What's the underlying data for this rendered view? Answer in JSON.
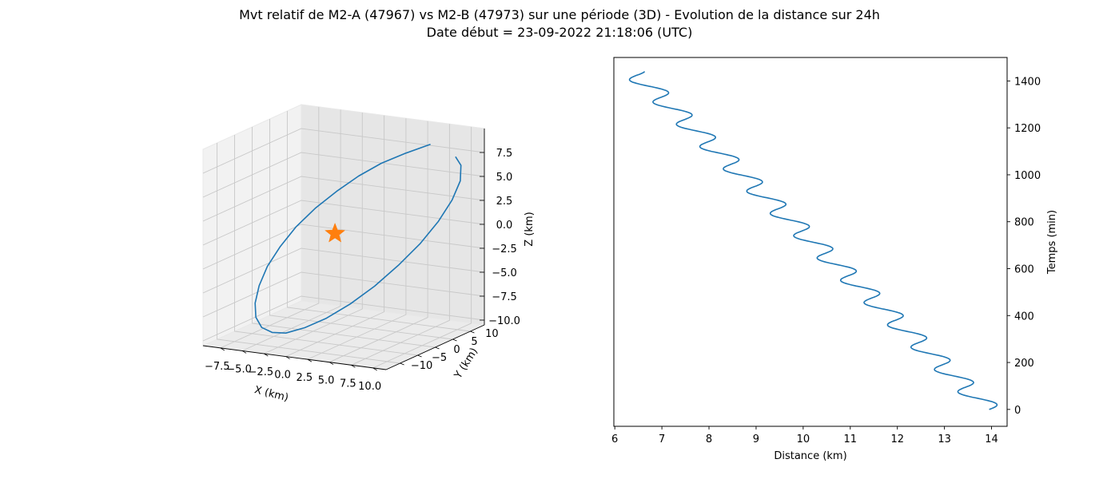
{
  "title": {
    "line1": "Mvt relatif de M2-A (47967) vs M2-B (47973) sur une période (3D) - Evolution de la distance sur 24h",
    "line2": "Date début = 23-09-2022 21:18:06 (UTC)"
  },
  "colors": {
    "series": "#1f77b4",
    "marker": "#ff7f0e",
    "pane_left": "#f2f2f2",
    "pane_right": "#e6e6e6",
    "pane_floor": "#ebebeb"
  },
  "chart_data": [
    {
      "type": "line-3d",
      "xlabel": "X (km)",
      "ylabel": "Y (km)",
      "zlabel": "Z (km)",
      "x_ticks": [
        "−7.5",
        "−5.0",
        "−2.5",
        "0.0",
        "2.5",
        "5.0",
        "7.5",
        "10.0"
      ],
      "y_ticks": [
        "−10",
        "−5",
        "0",
        "5",
        "10"
      ],
      "z_ticks": [
        "−10.0",
        "−7.5",
        "−5.0",
        "−2.5",
        "0.0",
        "2.5",
        "5.0",
        "7.5"
      ],
      "xlim": [
        -9.5,
        11.5
      ],
      "ylim": [
        -14,
        14
      ],
      "zlim": [
        -10.5,
        10
      ],
      "grid": true,
      "marker": {
        "shape": "star",
        "x": 0,
        "y": 0,
        "z": 0
      },
      "series": [
        {
          "points": [
            [
              7.9,
              7.6,
              9.0
            ],
            [
              6.5,
              4.0,
              8.5
            ],
            [
              5.0,
              0.8,
              7.8
            ],
            [
              3.6,
              -2.2,
              6.8
            ],
            [
              2.2,
              -5.0,
              5.5
            ],
            [
              0.8,
              -7.6,
              4.0
            ],
            [
              -0.5,
              -9.8,
              2.3
            ],
            [
              -1.6,
              -11.6,
              0.4
            ],
            [
              -2.6,
              -12.8,
              -1.6
            ],
            [
              -3.3,
              -13.4,
              -3.6
            ],
            [
              -3.8,
              -13.3,
              -5.5
            ],
            [
              -4.0,
              -12.6,
              -7.1
            ],
            [
              -3.9,
              -11.2,
              -8.4
            ],
            [
              -3.5,
              -9.2,
              -9.2
            ],
            [
              -2.9,
              -6.8,
              -9.6
            ],
            [
              -1.9,
              -3.9,
              -9.4
            ],
            [
              -0.7,
              -0.7,
              -8.8
            ],
            [
              0.7,
              2.6,
              -7.7
            ],
            [
              2.2,
              5.8,
              -6.2
            ],
            [
              3.8,
              8.6,
              -4.3
            ],
            [
              5.4,
              10.9,
              -2.2
            ],
            [
              6.8,
              12.6,
              0.0
            ],
            [
              8.0,
              13.5,
              2.2
            ],
            [
              8.9,
              13.6,
              4.3
            ],
            [
              9.3,
              12.8,
              6.1
            ],
            [
              9.2,
              11.5,
              7.2
            ]
          ]
        }
      ]
    },
    {
      "type": "line",
      "xlabel": "Distance (km)",
      "ylabel": "Temps (min)",
      "x_ticks": [
        6,
        7,
        8,
        9,
        10,
        11,
        12,
        13,
        14
      ],
      "y_ticks": [
        0,
        200,
        400,
        600,
        800,
        1000,
        1200,
        1400
      ],
      "xlim": [
        5.98,
        14.33
      ],
      "ylim": [
        -72,
        1500
      ],
      "grid": false,
      "y_axis_side": "right",
      "series": [
        {
          "description_of_shape": "decreasing oscillating distance, one oscillation per ~95 min orbit",
          "generator": {
            "t_start": 0,
            "t_end": 1440,
            "d_start": 13.95,
            "d_end": 6.4,
            "amplitude": 0.28,
            "period_min": 95
          }
        }
      ]
    }
  ]
}
